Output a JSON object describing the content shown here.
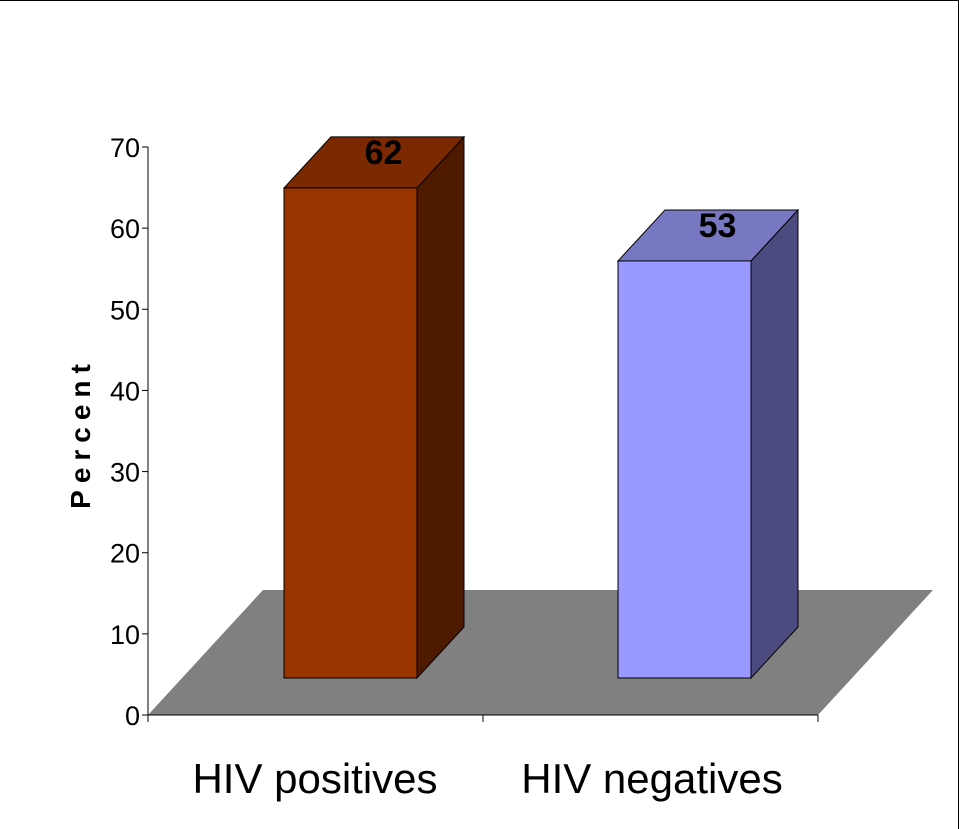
{
  "chart_data": {
    "type": "bar",
    "title": "",
    "xlabel": "",
    "ylabel": "Percent",
    "categories": [
      "HIV positives",
      "HIV negatives"
    ],
    "values": [
      62,
      53
    ],
    "data_labels": [
      "62",
      "53"
    ],
    "ylim": [
      0,
      70
    ],
    "yticks": [
      0,
      10,
      20,
      30,
      40,
      50,
      60,
      70
    ],
    "ytick_labels": [
      "0",
      "10",
      "20",
      "30",
      "40",
      "50",
      "60",
      "70"
    ],
    "grid": false,
    "legend": "none",
    "style": "3d-column",
    "colors": {
      "bars": [
        {
          "front": "#993300",
          "top": "#7a2900",
          "side": "#4d1a00"
        },
        {
          "front": "#9999ff",
          "top": "#7777c2",
          "side": "#4b4b80"
        }
      ],
      "floor": "#808080"
    }
  }
}
